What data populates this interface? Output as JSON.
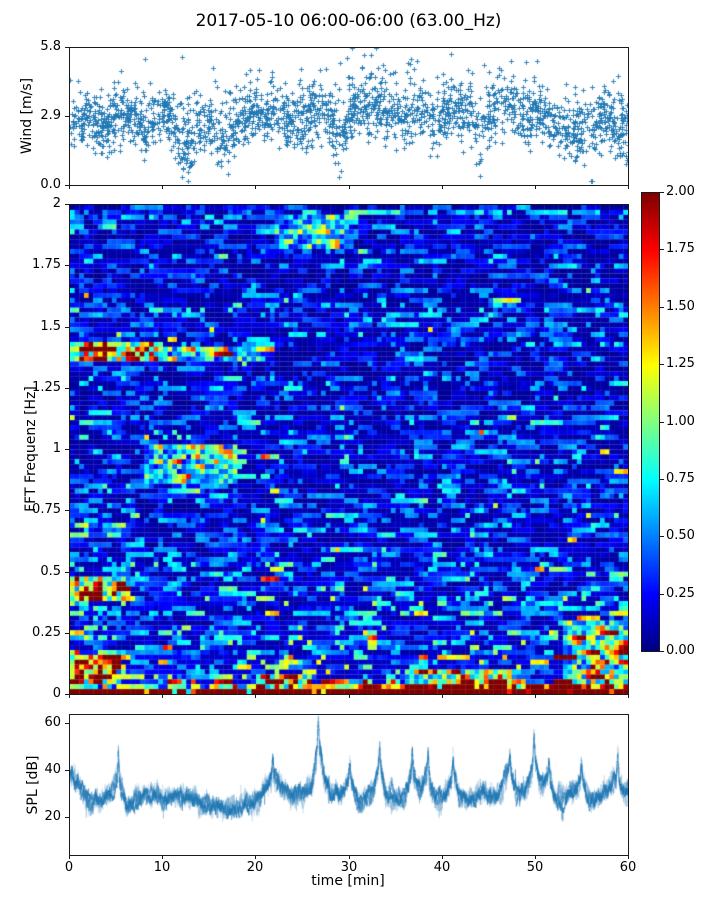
{
  "title": "2017-05-10 06:00-06:00 (63.00_Hz)",
  "colors": {
    "series": "#1f77b4",
    "spine": "#1a1a1a",
    "text": "#000000",
    "background": "#ffffff",
    "colorbar_max": "#7f0000",
    "colorbar_min": "#00007f"
  },
  "chart_data": [
    {
      "type": "scatter",
      "name": "wind-speed",
      "ylabel": "Wind [m/s]",
      "xlim": [
        0,
        60
      ],
      "ylim": [
        0,
        5.8
      ],
      "yticks": [
        {
          "v": 0.0,
          "label": "0.0"
        },
        {
          "v": 2.9,
          "label": "2.9"
        },
        {
          "v": 5.8,
          "label": "5.8"
        }
      ],
      "xticks": [
        0,
        10,
        20,
        30,
        40,
        50,
        60
      ],
      "marker": "plus",
      "color": "#1f77b4",
      "point_count": 2300,
      "noise_sigma": 0.62,
      "mean_by_minute": [
        2.6,
        2.8,
        2.9,
        2.3,
        2.5,
        3.0,
        3.0,
        2.9,
        2.4,
        2.7,
        2.9,
        2.8,
        1.8,
        1.6,
        2.6,
        2.8,
        2.0,
        2.2,
        2.8,
        3.0,
        3.1,
        2.7,
        3.2,
        3.1,
        2.9,
        2.6,
        3.1,
        3.3,
        2.9,
        2.2,
        3.0,
        3.2,
        3.4,
        3.3,
        3.0,
        3.1,
        2.8,
        3.0,
        3.2,
        2.8,
        3.0,
        3.4,
        3.1,
        2.8,
        2.2,
        2.9,
        3.5,
        3.4,
        3.1,
        2.8,
        3.0,
        2.9,
        2.6,
        2.5,
        2.4,
        2.3,
        1.9,
        2.7,
        2.9,
        2.2
      ]
    },
    {
      "type": "heatmap",
      "name": "fft-spectrogram",
      "ylabel": "FFT Frequenz [Hz]",
      "xlim": [
        0,
        60
      ],
      "ylim": [
        0,
        2
      ],
      "yticks": [
        {
          "v": 0,
          "label": "0"
        },
        {
          "v": 0.25,
          "label": "0.25"
        },
        {
          "v": 0.5,
          "label": "0.5"
        },
        {
          "v": 0.75,
          "label": "0.75"
        },
        {
          "v": 1,
          "label": "1"
        },
        {
          "v": 1.25,
          "label": "1.25"
        },
        {
          "v": 1.5,
          "label": "1.5"
        },
        {
          "v": 1.75,
          "label": "1.75"
        },
        {
          "v": 2,
          "label": "2"
        }
      ],
      "xticks": [
        0,
        10,
        20,
        30,
        40,
        50,
        60
      ],
      "colormap": "jet",
      "clim": [
        0,
        2
      ],
      "grid": {
        "cols": 120,
        "rows": 100
      },
      "colorbar": {
        "ticks": [
          {
            "v": 0,
            "label": "0.00"
          },
          {
            "v": 0.25,
            "label": "0.25"
          },
          {
            "v": 0.5,
            "label": "0.50"
          },
          {
            "v": 0.75,
            "label": "0.75"
          },
          {
            "v": 1,
            "label": "1.00"
          },
          {
            "v": 1.25,
            "label": "1.25"
          },
          {
            "v": 1.5,
            "label": "1.50"
          },
          {
            "v": 1.75,
            "label": "1.75"
          },
          {
            "v": 2,
            "label": "2.00"
          }
        ]
      },
      "freq_bands": [
        {
          "f0": 0.0,
          "f1": 0.02,
          "base": 2.2
        },
        {
          "f0": 0.02,
          "f1": 0.05,
          "base": 1.0
        },
        {
          "f0": 0.05,
          "f1": 0.1,
          "base": 0.75
        },
        {
          "f0": 0.1,
          "f1": 0.16,
          "base": 0.6
        },
        {
          "f0": 0.16,
          "f1": 0.3,
          "base": 0.5
        },
        {
          "f0": 0.3,
          "f1": 0.5,
          "base": 0.45
        },
        {
          "f0": 0.5,
          "f1": 0.8,
          "base": 0.36
        },
        {
          "f0": 0.8,
          "f1": 1.2,
          "base": 0.33
        },
        {
          "f0": 1.2,
          "f1": 2.0,
          "base": 0.3
        }
      ],
      "features": [
        {
          "t0": 0,
          "t1": 10,
          "f0": 1.36,
          "f1": 1.44,
          "boost": 0.85
        },
        {
          "t0": 10,
          "t1": 21,
          "f0": 1.37,
          "f1": 1.42,
          "boost": 0.3
        },
        {
          "t0": 0,
          "t1": 6,
          "f0": 0.37,
          "f1": 0.47,
          "boost": 0.7
        },
        {
          "t0": 0,
          "t1": 5,
          "f0": 0.05,
          "f1": 0.16,
          "boost": 0.8
        },
        {
          "t0": 8,
          "t1": 18,
          "f0": 0.85,
          "f1": 1.02,
          "boost": 0.28
        },
        {
          "t0": 22,
          "t1": 30,
          "f0": 1.83,
          "f1": 1.95,
          "boost": 0.26
        },
        {
          "t0": 20,
          "t1": 26,
          "f0": 0.02,
          "f1": 0.08,
          "boost": 0.55
        },
        {
          "t0": 36,
          "t1": 48,
          "f0": 0.02,
          "f1": 0.1,
          "boost": 0.5
        },
        {
          "t0": 53,
          "t1": 60,
          "f0": 0.02,
          "f1": 0.3,
          "boost": 0.35
        },
        {
          "t0": 30,
          "t1": 60,
          "f0": 0.0,
          "f1": 0.05,
          "boost": 0.45
        }
      ]
    },
    {
      "type": "line",
      "name": "spl",
      "ylabel": "SPL [dB]",
      "xlabel": "time [min]",
      "xlim": [
        0,
        60
      ],
      "ylim": [
        4,
        64
      ],
      "yticks": [
        {
          "v": 20,
          "label": "20"
        },
        {
          "v": 40,
          "label": "40"
        },
        {
          "v": 60,
          "label": "60"
        }
      ],
      "xticks": [
        {
          "v": 0,
          "label": "0"
        },
        {
          "v": 10,
          "label": "10"
        },
        {
          "v": 20,
          "label": "20"
        },
        {
          "v": 30,
          "label": "30"
        },
        {
          "v": 40,
          "label": "40"
        },
        {
          "v": 50,
          "label": "50"
        },
        {
          "v": 60,
          "label": "60"
        }
      ],
      "color": "#1f77b4",
      "mean_by_minute": [
        39,
        34,
        28,
        27,
        28,
        31,
        27,
        28,
        29,
        30,
        28,
        29,
        28,
        27,
        25,
        25,
        24,
        22,
        24,
        25,
        26,
        33,
        34,
        31,
        30,
        30,
        33,
        40,
        30,
        29,
        31,
        28,
        29,
        34,
        29,
        28,
        30,
        33,
        33,
        28,
        29,
        33,
        30,
        28,
        29,
        29,
        30,
        36,
        30,
        32,
        36,
        33,
        30,
        28,
        30,
        31,
        28,
        28,
        33,
        30
      ],
      "peaks": [
        {
          "t": 5.2,
          "value": 46
        },
        {
          "t": 21.8,
          "value": 44
        },
        {
          "t": 26.7,
          "value": 61
        },
        {
          "t": 30.1,
          "value": 43
        },
        {
          "t": 33.3,
          "value": 49
        },
        {
          "t": 36.8,
          "value": 45
        },
        {
          "t": 38.5,
          "value": 47
        },
        {
          "t": 41.2,
          "value": 46
        },
        {
          "t": 47.3,
          "value": 46
        },
        {
          "t": 49.9,
          "value": 53
        },
        {
          "t": 51.5,
          "value": 44
        },
        {
          "t": 55.0,
          "value": 44
        },
        {
          "t": 58.9,
          "value": 49
        }
      ]
    }
  ]
}
